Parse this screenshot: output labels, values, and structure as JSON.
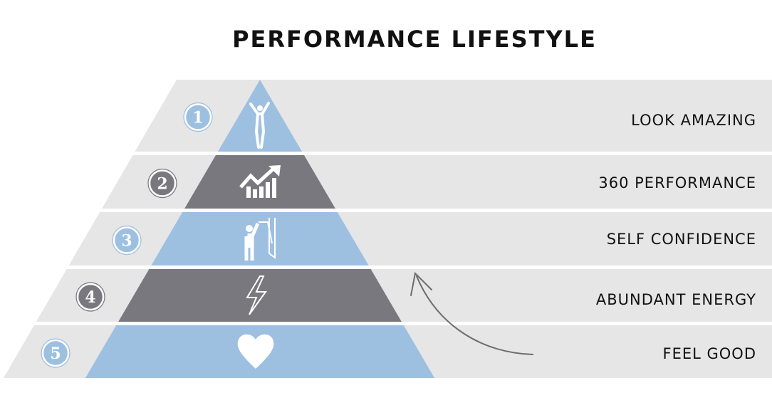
{
  "title": "PERFORMANCE LIFESTYLE",
  "colors": {
    "blue": "#9dc0e1",
    "gray": "#7a787f",
    "band": "#e6e6e6"
  },
  "levels": [
    {
      "number": "1",
      "label": "LOOK AMAZING",
      "icon": "jumping-person-icon",
      "color": "blue"
    },
    {
      "number": "2",
      "label": "360 PERFORMANCE",
      "icon": "growth-chart-icon",
      "color": "gray"
    },
    {
      "number": "3",
      "label": "SELF CONFIDENCE",
      "icon": "high-five-mirror-icon",
      "color": "blue"
    },
    {
      "number": "4",
      "label": "ABUNDANT ENERGY",
      "icon": "lightning-bolt-icon",
      "color": "gray"
    },
    {
      "number": "5",
      "label": "FEEL GOOD",
      "icon": "heart-icon",
      "color": "blue"
    }
  ],
  "arrow": "curved-up-arrow-icon"
}
